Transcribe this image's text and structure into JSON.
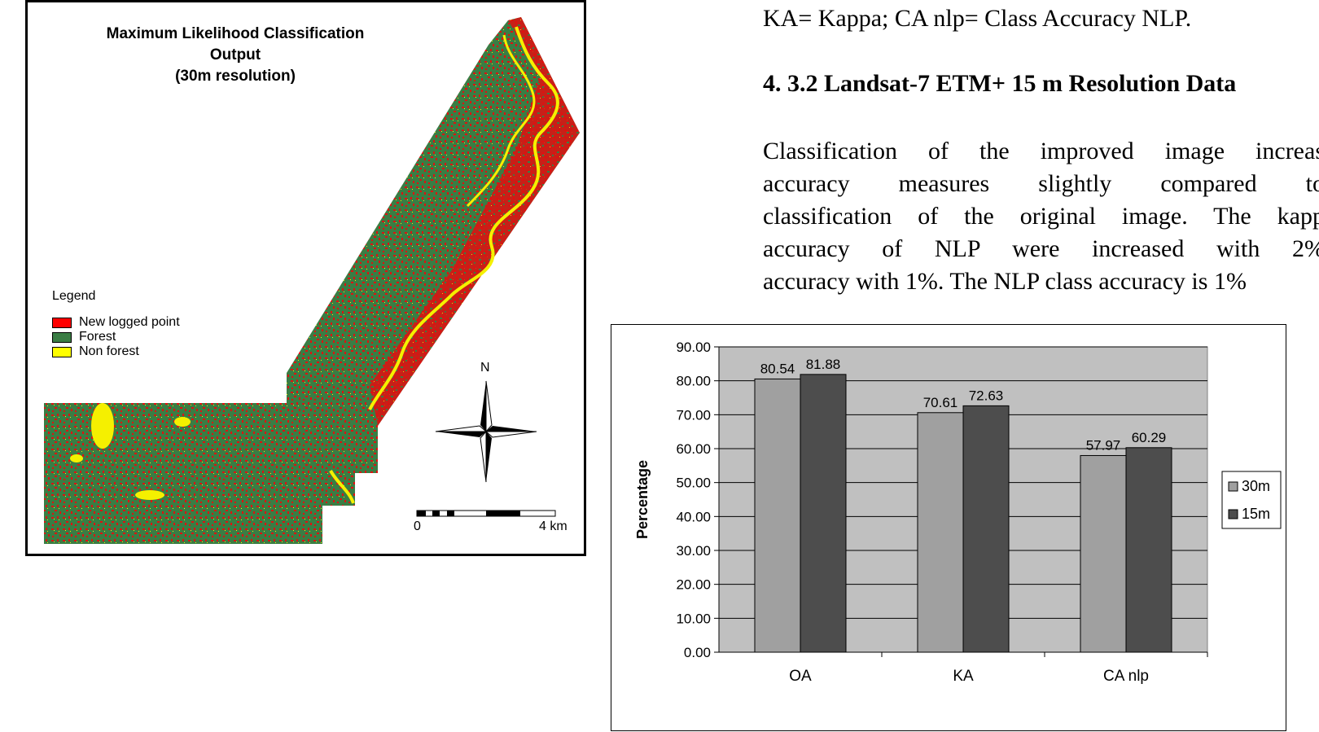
{
  "map": {
    "title_lines": [
      "Maximum Likelihood Classification",
      "Output",
      "(30m resolution)"
    ],
    "legend": {
      "title": "Legend",
      "items": [
        {
          "label": "New logged point",
          "color": "#ff0000"
        },
        {
          "label": "Forest",
          "color": "#3a7d44"
        },
        {
          "label": "Non forest",
          "color": "#ffff00"
        }
      ]
    },
    "north_label": "N",
    "scale": {
      "start": "0",
      "end": "4 km"
    }
  },
  "text": {
    "caption": "KA= Kappa; CA nlp= Class Accuracy NLP.",
    "heading": "4. 3.2  Landsat-7 ETM+ 15 m Resolution Data",
    "paragraph_lines": [
      "Classification of the improved image increas",
      "accuracy measures slightly compared to",
      "classification of the original image. The kapp",
      "accuracy of NLP were increased with 2%",
      "accuracy with 1%. The NLP class accuracy is 1%"
    ]
  },
  "chart_data": {
    "type": "bar",
    "categories": [
      "OA",
      "KA",
      "CA nlp"
    ],
    "series": [
      {
        "name": "30m",
        "values": [
          80.54,
          70.61,
          57.97
        ],
        "color": "#a0a0a0"
      },
      {
        "name": "15m",
        "values": [
          81.88,
          72.63,
          60.29
        ],
        "color": "#4d4d4d"
      }
    ],
    "value_labels": [
      [
        "80.54",
        "70.61",
        "57.97"
      ],
      [
        "81.88",
        "72.63",
        "60.29"
      ]
    ],
    "ylabel": "Percentage",
    "ylim": [
      0,
      90
    ],
    "y_ticks": [
      "0.00",
      "10.00",
      "20.00",
      "30.00",
      "40.00",
      "50.00",
      "60.00",
      "70.00",
      "80.00",
      "90.00"
    ],
    "grid": true,
    "plot_background": "#c0c0c0",
    "legend_position": "right"
  }
}
